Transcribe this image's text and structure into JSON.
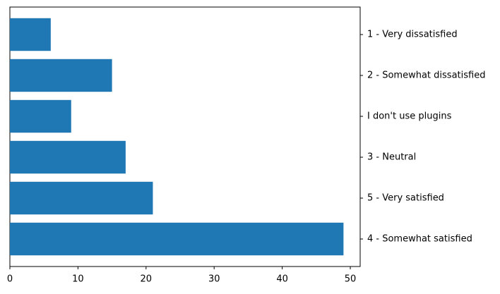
{
  "chart_data": {
    "type": "barh",
    "categories": [
      "1 - Very dissatisfied",
      "2 - Somewhat dissatisfied",
      "I don't use plugins",
      "3 - Neutral",
      "5 - Very satisfied",
      "4 - Somewhat satisfied"
    ],
    "values": [
      6,
      15,
      9,
      17,
      21,
      49
    ],
    "color": "#1f77b4",
    "xlim": [
      0,
      51.45
    ],
    "xticks": [
      0,
      10,
      20,
      30,
      40,
      50
    ]
  }
}
